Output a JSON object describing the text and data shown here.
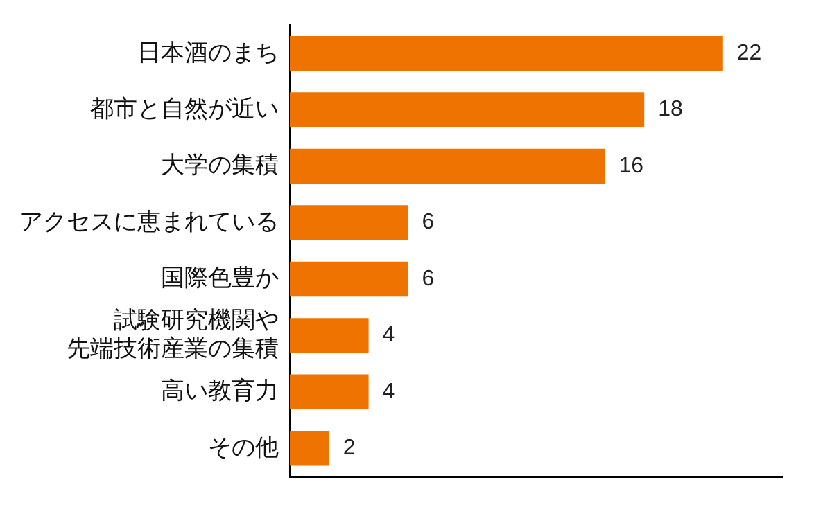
{
  "chart_data": {
    "type": "bar",
    "orientation": "horizontal",
    "categories": [
      "日本酒のまち",
      "都市と自然が近い",
      "大学の集積",
      "アクセスに恵まれている",
      "国際色豊か",
      "試験研究機関や先端技術産業の集積",
      "高い教育力",
      "その他"
    ],
    "values": [
      22,
      18,
      16,
      6,
      6,
      4,
      4,
      2
    ],
    "color": "#ef7300",
    "xlim": [
      0,
      25
    ],
    "data_labels": true,
    "grid": false,
    "legend": false,
    "tick_labels": "y"
  }
}
